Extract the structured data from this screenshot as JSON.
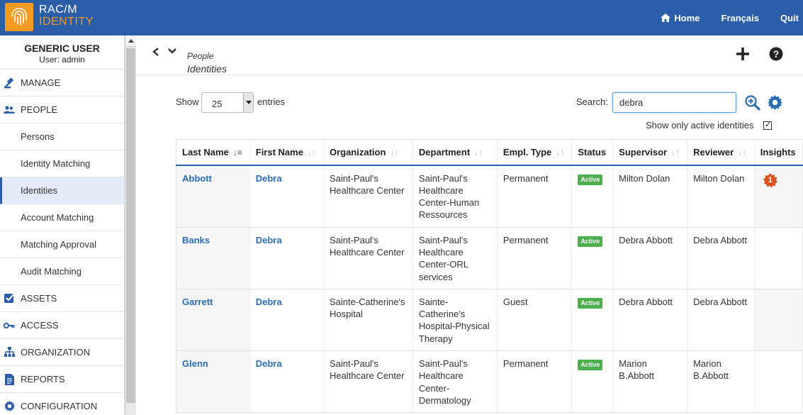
{
  "app": {
    "logo_line1": "RAC/M",
    "logo_line2": "IDENTITY",
    "nav": {
      "home": "Home",
      "language": "Français",
      "quit": "Quit"
    }
  },
  "user": {
    "name": "GENERIC USER",
    "sub": "User: admin"
  },
  "sidebar": {
    "items": [
      {
        "label": "MANAGE",
        "type": "top",
        "icon": "gavel-icon"
      },
      {
        "label": "PEOPLE",
        "type": "top",
        "icon": "people-icon"
      },
      {
        "label": "Persons",
        "type": "sub"
      },
      {
        "label": "Identity Matching",
        "type": "sub"
      },
      {
        "label": "Identities",
        "type": "sub",
        "active": true
      },
      {
        "label": "Account Matching",
        "type": "sub"
      },
      {
        "label": "Matching Approval",
        "type": "sub"
      },
      {
        "label": "Audit Matching",
        "type": "sub"
      },
      {
        "label": "ASSETS",
        "type": "top",
        "icon": "checkbox-icon"
      },
      {
        "label": "ACCESS",
        "type": "top",
        "icon": "key-icon"
      },
      {
        "label": "ORGANIZATION",
        "type": "top",
        "icon": "org-chart-icon"
      },
      {
        "label": "REPORTS",
        "type": "top",
        "icon": "document-icon"
      },
      {
        "label": "CONFIGURATION",
        "type": "top",
        "icon": "gear-icon"
      }
    ]
  },
  "breadcrumb": {
    "parent": "People",
    "current": "Identities"
  },
  "controls": {
    "show_label": "Show",
    "entries_value": "25",
    "entries_label": "entries",
    "search_label": "Search:",
    "search_value": "debra",
    "active_only_label": "Show only active identities"
  },
  "table": {
    "columns": [
      "Last Name",
      "First Name",
      "Organization",
      "Department",
      "Empl. Type",
      "Status",
      "Supervisor",
      "Reviewer",
      "Insights"
    ],
    "rows": [
      {
        "last": "Abbott",
        "first": "Debra",
        "org": [
          "Saint-Paul's",
          "Healthcare Center"
        ],
        "dept": [
          "Saint-Paul's",
          "Healthcare",
          "Center-Human",
          "Ressources"
        ],
        "type": "Permanent",
        "status": "Active",
        "supervisor": [
          "Milton Dolan"
        ],
        "reviewer": [
          "Milton Dolan"
        ],
        "insights": "1"
      },
      {
        "last": "Banks",
        "first": "Debra",
        "org": [
          "Saint-Paul's",
          "Healthcare Center"
        ],
        "dept": [
          "Saint-Paul's",
          "Healthcare",
          "Center-ORL",
          "services"
        ],
        "type": "Permanent",
        "status": "Active",
        "supervisor": [
          "Debra Abbott"
        ],
        "reviewer": [
          "Debra Abbott"
        ],
        "insights": ""
      },
      {
        "last": "Garrett",
        "first": "Debra",
        "org": [
          "Sainte-Catherine's",
          "Hospital"
        ],
        "dept": [
          "Sainte-",
          "Catherine's",
          "Hospital-Physical",
          "Therapy"
        ],
        "type": "Guest",
        "status": "Active",
        "supervisor": [
          "Debra Abbott"
        ],
        "reviewer": [
          "Debra Abbott"
        ],
        "insights": ""
      },
      {
        "last": "Glenn",
        "first": "Debra",
        "org": [
          "Saint-Paul's",
          "Healthcare Center"
        ],
        "dept": [
          "Saint-Paul's",
          "Healthcare",
          "Center-",
          "Dermatology"
        ],
        "type": "Permanent",
        "status": "Active",
        "supervisor": [
          "Marion",
          "B.Abbott"
        ],
        "reviewer": [
          "Marion",
          "B.Abbott"
        ],
        "insights": ""
      }
    ]
  },
  "colors": {
    "brand": "#2a5ea8",
    "accent": "#f59a23",
    "active_badge": "#4cae4c",
    "link": "#2a6db5",
    "insight": "#d9541e"
  }
}
